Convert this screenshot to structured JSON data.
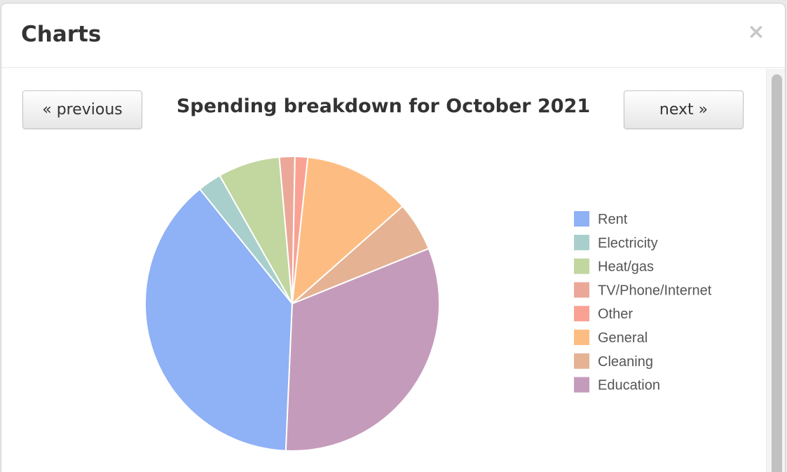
{
  "modal": {
    "title": "Charts",
    "close_label": "×"
  },
  "nav": {
    "previous_label": "« previous",
    "next_label": "next »"
  },
  "chart_data": {
    "type": "pie",
    "title": "Spending breakdown for October 2021",
    "legend_position": "right",
    "slices": [
      {
        "label": "Rent",
        "value": 38.5,
        "color": "#8fb1f5"
      },
      {
        "label": "Electricity",
        "value": 2.6,
        "color": "#a8cfcc"
      },
      {
        "label": "Heat/gas",
        "value": 6.8,
        "color": "#c2d6a0"
      },
      {
        "label": "TV/Phone/Internet",
        "value": 1.7,
        "color": "#eba898"
      },
      {
        "label": "Other",
        "value": 1.4,
        "color": "#f9a294"
      },
      {
        "label": "General",
        "value": 11.8,
        "color": "#fdbd82"
      },
      {
        "label": "Cleaning",
        "value": 5.4,
        "color": "#e5b393"
      },
      {
        "label": "Education",
        "value": 31.8,
        "color": "#c59bbb"
      }
    ]
  }
}
